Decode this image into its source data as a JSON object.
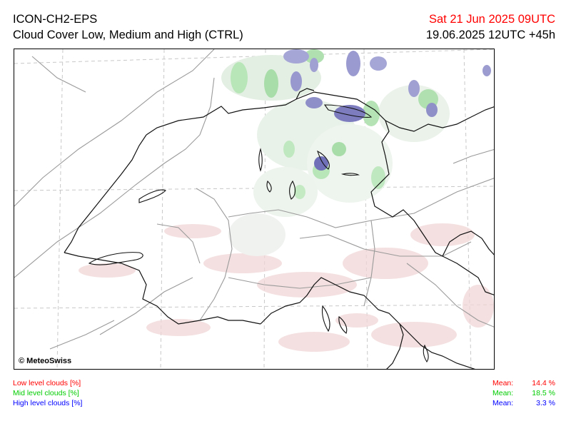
{
  "header": {
    "model": "ICON-CH2-EPS",
    "product": "Cloud Cover Low, Medium and High (CTRL)",
    "valid_time": "Sat 21 Jun 2025 09UTC",
    "init_time": "19.06.2025 12UTC +45h"
  },
  "map": {
    "copyright": "© MeteoSwiss",
    "colors": {
      "low_clouds": "#ff0000",
      "mid_clouds": "#00cc00",
      "high_clouds": "#0000ff",
      "border": "#000000",
      "relief": "#9a9a9a",
      "graticule": "#c8c8c8"
    }
  },
  "legend": [
    {
      "label": "Low level clouds [%]",
      "mean_label": "Mean:",
      "mean_value": "14.4 %"
    },
    {
      "label": "Mid level clouds [%]",
      "mean_label": "Mean:",
      "mean_value": "18.5 %"
    },
    {
      "label": "High level clouds [%]",
      "mean_label": "Mean:",
      "mean_value": "3.3 %"
    }
  ]
}
